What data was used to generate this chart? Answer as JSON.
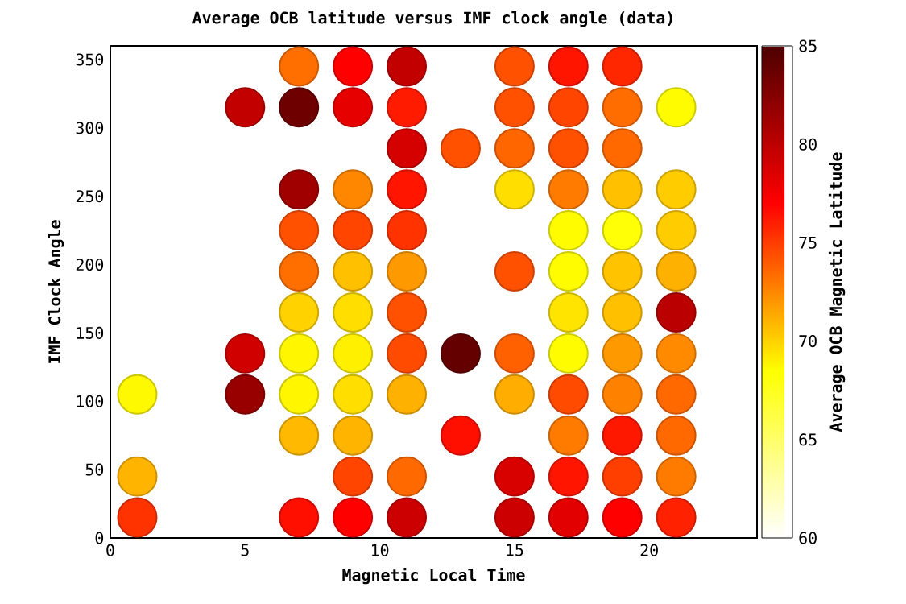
{
  "chart_data": {
    "type": "scatter",
    "title": "Average OCB latitude versus IMF clock angle (data)",
    "xlabel": "Magnetic Local Time",
    "ylabel": "IMF Clock Angle",
    "clabel": "Average OCB Magnetic Latitude",
    "xlim": [
      0,
      24
    ],
    "ylim": [
      0,
      360
    ],
    "xticks": [
      0,
      5,
      10,
      15,
      20
    ],
    "yticks": [
      0,
      50,
      100,
      150,
      200,
      250,
      300,
      350
    ],
    "clim": [
      60,
      85
    ],
    "cticks": [
      60,
      65,
      70,
      75,
      80,
      85
    ],
    "marker": "circle",
    "x": [
      1,
      1,
      1,
      5,
      5,
      5,
      7,
      7,
      7,
      7,
      7,
      7,
      7,
      7,
      7,
      7,
      9,
      9,
      9,
      9,
      9,
      9,
      9,
      9,
      9,
      9,
      9,
      11,
      11,
      11,
      11,
      11,
      11,
      11,
      11,
      11,
      11,
      11,
      13,
      13,
      13,
      15,
      15,
      15,
      15,
      15,
      15,
      15,
      15,
      15,
      17,
      17,
      17,
      17,
      17,
      17,
      17,
      17,
      17,
      17,
      17,
      17,
      19,
      19,
      19,
      19,
      19,
      19,
      19,
      19,
      19,
      19,
      19,
      19,
      21,
      21,
      21,
      21,
      21,
      21,
      21,
      21,
      21,
      21
    ],
    "values": [
      15,
      45,
      105,
      105,
      135,
      315,
      15,
      75,
      105,
      135,
      165,
      195,
      225,
      255,
      315,
      345,
      15,
      45,
      75,
      105,
      135,
      165,
      195,
      225,
      255,
      315,
      345,
      15,
      45,
      105,
      135,
      165,
      195,
      225,
      255,
      285,
      315,
      345,
      75,
      135,
      285,
      15,
      45,
      105,
      135,
      195,
      255,
      285,
      315,
      345,
      15,
      45,
      75,
      105,
      135,
      165,
      195,
      225,
      255,
      285,
      315,
      345,
      15,
      45,
      75,
      105,
      135,
      165,
      195,
      225,
      255,
      285,
      315,
      345,
      15,
      45,
      75,
      105,
      135,
      165,
      195,
      225,
      255,
      315
    ],
    "cvalues": [
      75.3,
      71.0,
      68.7,
      81.6,
      79.1,
      79.7,
      76.5,
      70.8,
      68.8,
      68.8,
      70.0,
      73.3,
      74.3,
      81.2,
      83.5,
      73.3,
      77.0,
      74.7,
      71.0,
      69.6,
      69.0,
      69.6,
      70.6,
      74.7,
      72.5,
      78.1,
      77.0,
      79.3,
      73.5,
      71.1,
      74.5,
      74.3,
      71.9,
      75.3,
      76.3,
      78.9,
      76.1,
      79.7,
      76.5,
      83.9,
      74.3,
      79.3,
      78.7,
      71.2,
      73.8,
      74.3,
      69.6,
      73.6,
      74.3,
      74.3,
      78.3,
      76.3,
      72.9,
      74.5,
      68.6,
      69.4,
      68.6,
      68.6,
      72.9,
      74.3,
      74.7,
      76.3,
      77.0,
      74.9,
      76.2,
      72.7,
      71.9,
      70.6,
      70.5,
      68.3,
      70.6,
      73.5,
      73.4,
      75.7,
      75.9,
      72.9,
      73.5,
      73.5,
      72.4,
      80.1,
      71.1,
      70.2,
      70.2,
      68.6
    ]
  }
}
